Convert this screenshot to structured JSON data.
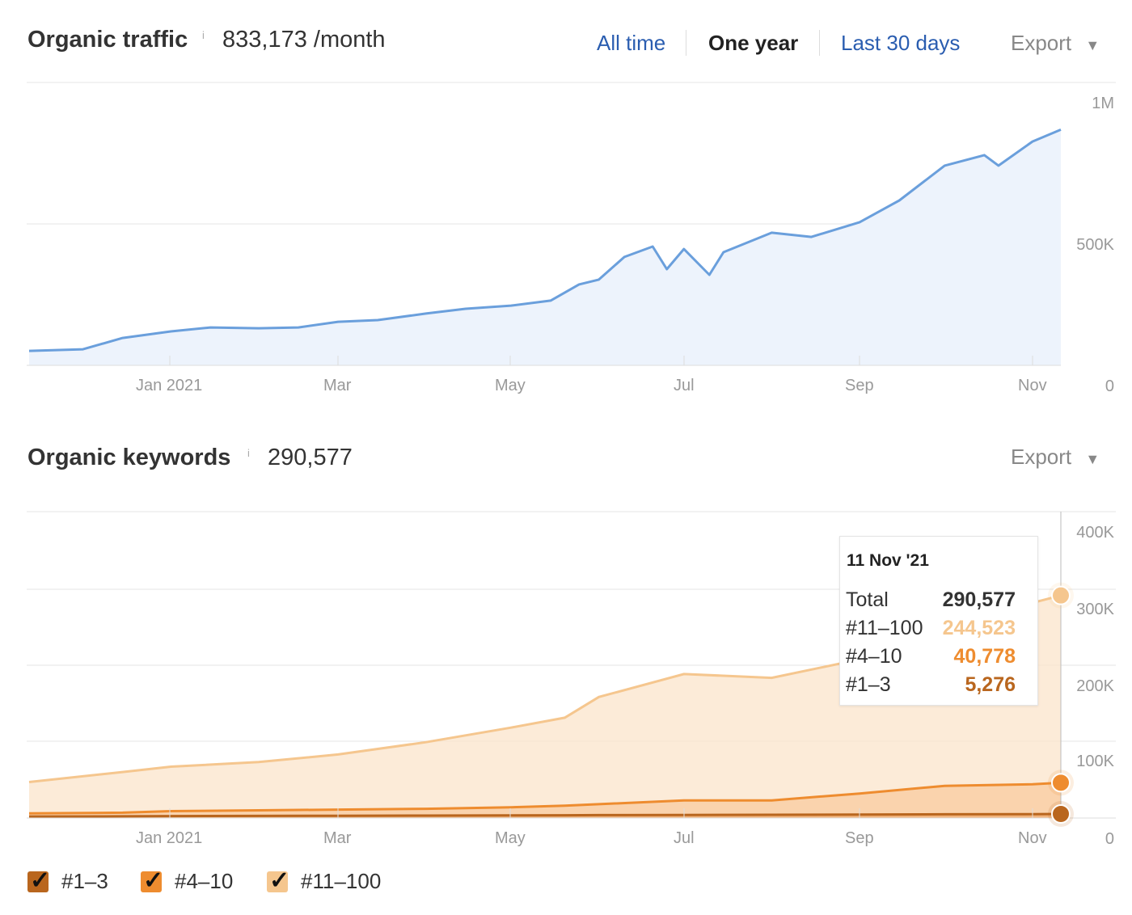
{
  "traffic": {
    "title": "Organic traffic",
    "info": "i",
    "value": "833,173 /month",
    "ranges": [
      "All time",
      "One year",
      "Last 30 days"
    ],
    "active_range": "One year",
    "export": "Export"
  },
  "keywords": {
    "title": "Organic keywords",
    "info": "i",
    "value": "290,577",
    "export": "Export"
  },
  "tooltip": {
    "date": "11 Nov '21",
    "rows": [
      {
        "label": "Total",
        "value": "290,577",
        "color": "#333333"
      },
      {
        "label": "#11–100",
        "value": "244,523",
        "color": "#f5c68e"
      },
      {
        "label": "#4–10",
        "value": "40,778",
        "color": "#ee8c2f"
      },
      {
        "label": "#1–3",
        "value": "5,276",
        "color": "#b9661e"
      }
    ]
  },
  "legend": [
    {
      "label": "#1–3",
      "color": "#b9661e",
      "checked": true
    },
    {
      "label": "#4–10",
      "color": "#ee8c2f",
      "checked": true
    },
    {
      "label": "#11–100",
      "color": "#f5c68e",
      "checked": true
    }
  ],
  "chart_data": [
    {
      "type": "area",
      "title": "Organic traffic",
      "x_ticks": [
        "Jan 2021",
        "Mar",
        "May",
        "Jul",
        "Sep",
        "Nov"
      ],
      "y_ticks": [
        "0",
        "500K",
        "1M"
      ],
      "ylim": [
        0,
        1000000
      ],
      "grid": true,
      "color": "#6a9fdc",
      "x": [
        "2020-11-12",
        "2020-12-01",
        "2020-12-15",
        "2021-01-01",
        "2021-01-15",
        "2021-02-01",
        "2021-02-15",
        "2021-03-01",
        "2021-03-15",
        "2021-04-01",
        "2021-04-15",
        "2021-05-01",
        "2021-05-15",
        "2021-05-25",
        "2021-06-01",
        "2021-06-10",
        "2021-06-20",
        "2021-06-25",
        "2021-07-01",
        "2021-07-10",
        "2021-07-15",
        "2021-08-01",
        "2021-08-15",
        "2021-09-01",
        "2021-09-15",
        "2021-10-01",
        "2021-10-15",
        "2021-10-20",
        "2021-11-01",
        "2021-11-11"
      ],
      "y": [
        51000,
        57000,
        97000,
        120000,
        134000,
        131000,
        134000,
        154000,
        160000,
        183000,
        200000,
        211000,
        229000,
        286000,
        303000,
        383000,
        420000,
        340000,
        411000,
        320000,
        400000,
        469000,
        454000,
        506000,
        583000,
        706000,
        743000,
        706000,
        791000,
        833173
      ]
    },
    {
      "type": "area",
      "stacked": true,
      "title": "Organic keywords",
      "x_ticks": [
        "Jan 2021",
        "Mar",
        "May",
        "Jul",
        "Sep",
        "Nov"
      ],
      "y_ticks": [
        "0",
        "100K",
        "200K",
        "300K",
        "400K"
      ],
      "ylim": [
        0,
        400000
      ],
      "grid": true,
      "legend": "bottom-left",
      "x": [
        "2020-11-12",
        "2020-12-15",
        "2021-01-01",
        "2021-02-01",
        "2021-03-01",
        "2021-04-01",
        "2021-05-01",
        "2021-05-20",
        "2021-06-01",
        "2021-07-01",
        "2021-08-01",
        "2021-09-01",
        "2021-10-01",
        "2021-11-01",
        "2021-11-11"
      ],
      "series": [
        {
          "name": "#1–3",
          "color": "#b9661e",
          "values": [
            2000,
            2200,
            2500,
            2700,
            3000,
            3200,
            3400,
            3600,
            3800,
            4000,
            4200,
            4500,
            4900,
            5100,
            5276
          ]
        },
        {
          "name": "#4–10",
          "color": "#ee8c2f",
          "values": [
            4000,
            4800,
            6500,
            7300,
            8000,
            8800,
            10600,
            12400,
            14200,
            19000,
            18800,
            27500,
            37100,
            38900,
            40778
          ]
        },
        {
          "name": "#11–100",
          "color": "#f5c68e",
          "values": [
            41000,
            53000,
            58000,
            63000,
            72000,
            87000,
            104000,
            115000,
            140000,
            165000,
            160000,
            175000,
            192000,
            237000,
            244523
          ]
        }
      ]
    }
  ]
}
